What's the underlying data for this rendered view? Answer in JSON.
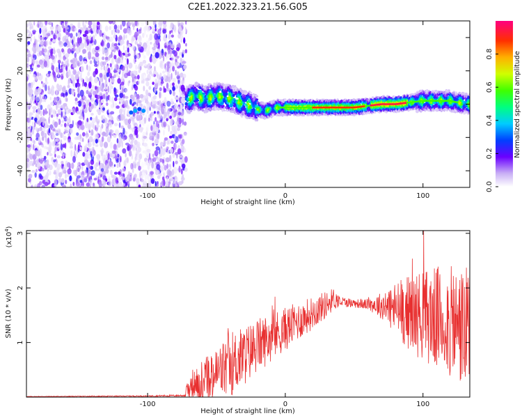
{
  "title": "C2E1.2022.323.21.56.G05",
  "colors": {
    "snr_line": "#e83030",
    "axis": "#000000",
    "background": "#ffffff"
  },
  "chart_data": [
    {
      "type": "heatmap",
      "name": "spectrogram",
      "xlabel": "Height of straight line (km)",
      "ylabel": "Frequency (Hz)",
      "xlim": [
        -188,
        134
      ],
      "ylim": [
        -50,
        50
      ],
      "xticks": [
        -100,
        0,
        100
      ],
      "xtick_labels": [
        "-100",
        "0",
        "100"
      ],
      "yticks": [
        -40,
        -20,
        0,
        20,
        40
      ],
      "ytick_labels": [
        "-40",
        "-20",
        "0",
        "20",
        "40"
      ],
      "noise_region_x": [
        -188,
        -72
      ],
      "signal_start_x": -72,
      "signal_track": {
        "x": [
          -72,
          -65,
          -58,
          -50,
          -44,
          -38,
          -32,
          -25,
          -20,
          -15,
          -10,
          -5,
          0,
          10,
          20,
          30,
          40,
          50,
          60,
          70,
          80,
          90,
          100,
          110,
          120,
          125,
          134
        ],
        "freq_hz": [
          2,
          5,
          3,
          5,
          4,
          3,
          1,
          -1,
          -3,
          -4,
          -3,
          -2,
          -2,
          -2,
          -2,
          -2,
          -2,
          -2,
          -1,
          0,
          0,
          1,
          2,
          2,
          2,
          1,
          0
        ]
      },
      "colorbar": {
        "label": "Normalized spectral amplitude",
        "range": [
          0,
          1
        ],
        "ticks": [
          0.0,
          0.2,
          0.4,
          0.6,
          0.8
        ],
        "tick_labels": [
          "0.0",
          "0.2",
          "0.4",
          "0.6",
          "0.8"
        ]
      }
    },
    {
      "type": "line",
      "name": "snr",
      "xlabel": "Height of straight line (km)",
      "ylabel": "SNR (10 * v/v)",
      "y_scale_label": "(x10",
      "y_scale_exponent": "4",
      "y_scale_close": ")",
      "xlim": [
        -188,
        134
      ],
      "ylim": [
        0,
        3.05
      ],
      "xticks": [
        -100,
        0,
        100
      ],
      "xtick_labels": [
        "-100",
        "0",
        "100"
      ],
      "yticks": [
        1,
        2,
        3
      ],
      "ytick_labels": [
        "1",
        "2",
        "3"
      ],
      "envelope": {
        "x": [
          -188,
          -100,
          -73,
          -70,
          -60,
          -50,
          -40,
          -30,
          -20,
          -10,
          0,
          10,
          20,
          30,
          35,
          40,
          50,
          60,
          70,
          80,
          90,
          100,
          110,
          120,
          130,
          134
        ],
        "mean": [
          0.01,
          0.02,
          0.03,
          0.18,
          0.3,
          0.42,
          0.6,
          0.75,
          0.95,
          1.1,
          1.25,
          1.4,
          1.55,
          1.7,
          1.8,
          1.75,
          1.72,
          1.7,
          1.68,
          1.62,
          1.55,
          1.5,
          1.45,
          1.35,
          1.25,
          1.2
        ],
        "spread": [
          0.005,
          0.01,
          0.02,
          0.25,
          0.4,
          0.5,
          0.6,
          0.55,
          0.5,
          0.45,
          0.4,
          0.35,
          0.3,
          0.25,
          0.2,
          0.1,
          0.08,
          0.1,
          0.25,
          0.5,
          0.7,
          0.85,
          0.95,
          1.05,
          1.15,
          1.15
        ]
      }
    }
  ]
}
